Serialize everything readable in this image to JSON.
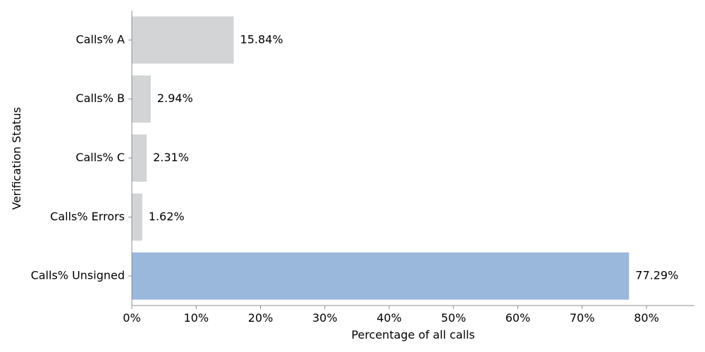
{
  "chart_data": {
    "type": "bar",
    "orientation": "horizontal",
    "title": "",
    "xlabel": "Percentage of all calls",
    "ylabel": "Verification Status",
    "categories": [
      "Calls% A",
      "Calls% B",
      "Calls% C",
      "Calls% Errors",
      "Calls% Unsigned"
    ],
    "values": [
      15.84,
      2.94,
      2.31,
      1.62,
      77.29
    ],
    "value_labels": [
      "15.84%",
      "2.94%",
      "2.31%",
      "1.62%",
      "77.29%"
    ],
    "xlim": [
      0,
      87.4
    ],
    "xticks": [
      0,
      10,
      20,
      30,
      40,
      50,
      60,
      70,
      80
    ],
    "xtick_labels": [
      "0%",
      "10%",
      "20%",
      "30%",
      "40%",
      "50%",
      "60%",
      "70%",
      "80%"
    ],
    "grid": false,
    "colors": {
      "default_bar": "#d3d4d6",
      "highlight_bar": "#9ab7dc",
      "axis": "#8c8c8c"
    },
    "highlight_index": 4
  }
}
